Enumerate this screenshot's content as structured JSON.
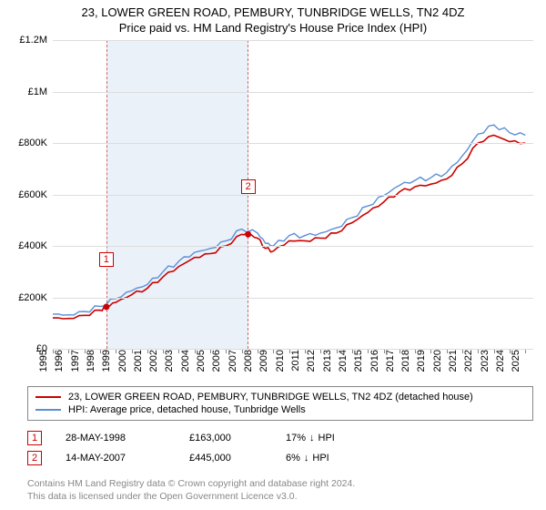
{
  "title_main": "23, LOWER GREEN ROAD, PEMBURY, TUNBRIDGE WELLS, TN2 4DZ",
  "title_sub": "Price paid vs. HM Land Registry's House Price Index (HPI)",
  "chart": {
    "type": "line",
    "background_color": "#ffffff",
    "grid_color": "#dddddd",
    "axis_color": "#888888",
    "label_fontsize": 11,
    "ylim": [
      0,
      1200000
    ],
    "yticks": [
      {
        "v": 0,
        "label": "£0"
      },
      {
        "v": 200000,
        "label": "£200K"
      },
      {
        "v": 400000,
        "label": "£400K"
      },
      {
        "v": 600000,
        "label": "£600K"
      },
      {
        "v": 800000,
        "label": "£800K"
      },
      {
        "v": 1000000,
        "label": "£1M"
      },
      {
        "v": 1200000,
        "label": "£1.2M"
      }
    ],
    "xlim": [
      1995,
      2025.5
    ],
    "xticks": [
      "1995",
      "1996",
      "1997",
      "1998",
      "1999",
      "2000",
      "2001",
      "2002",
      "2003",
      "2004",
      "2005",
      "2006",
      "2007",
      "2008",
      "2009",
      "2010",
      "2011",
      "2012",
      "2013",
      "2014",
      "2015",
      "2016",
      "2017",
      "2018",
      "2019",
      "2020",
      "2021",
      "2022",
      "2023",
      "2024",
      "2025"
    ],
    "shade": {
      "from_x": 1998.4,
      "to_x": 2007.4,
      "fill": "#eaf1f9",
      "border": "#cc6666"
    },
    "series": [
      {
        "name": "price_paid",
        "color": "#cc0000",
        "width": 1.6,
        "points": [
          [
            1995.0,
            120000
          ],
          [
            1996.0,
            118000
          ],
          [
            1997.0,
            130000
          ],
          [
            1998.0,
            150000
          ],
          [
            1998.4,
            163000
          ],
          [
            1999.0,
            180000
          ],
          [
            2000.0,
            210000
          ],
          [
            2001.0,
            235000
          ],
          [
            2002.0,
            280000
          ],
          [
            2003.0,
            320000
          ],
          [
            2004.0,
            355000
          ],
          [
            2005.0,
            370000
          ],
          [
            2006.0,
            400000
          ],
          [
            2007.0,
            445000
          ],
          [
            2007.4,
            445000
          ],
          [
            2008.0,
            430000
          ],
          [
            2008.5,
            390000
          ],
          [
            2009.0,
            380000
          ],
          [
            2010.0,
            420000
          ],
          [
            2011.0,
            420000
          ],
          [
            2012.0,
            430000
          ],
          [
            2013.0,
            450000
          ],
          [
            2014.0,
            490000
          ],
          [
            2015.0,
            530000
          ],
          [
            2016.0,
            570000
          ],
          [
            2017.0,
            610000
          ],
          [
            2018.0,
            630000
          ],
          [
            2019.0,
            640000
          ],
          [
            2020.0,
            660000
          ],
          [
            2021.0,
            720000
          ],
          [
            2022.0,
            800000
          ],
          [
            2023.0,
            830000
          ],
          [
            2024.0,
            805000
          ],
          [
            2025.0,
            800000
          ]
        ]
      },
      {
        "name": "hpi",
        "color": "#5a8fd6",
        "width": 1.4,
        "points": [
          [
            1995.0,
            135000
          ],
          [
            1996.0,
            132000
          ],
          [
            1997.0,
            145000
          ],
          [
            1998.0,
            165000
          ],
          [
            1999.0,
            195000
          ],
          [
            2000.0,
            225000
          ],
          [
            2001.0,
            250000
          ],
          [
            2002.0,
            300000
          ],
          [
            2003.0,
            340000
          ],
          [
            2004.0,
            375000
          ],
          [
            2005.0,
            390000
          ],
          [
            2006.0,
            420000
          ],
          [
            2007.0,
            465000
          ],
          [
            2008.0,
            450000
          ],
          [
            2008.5,
            410000
          ],
          [
            2009.0,
            400000
          ],
          [
            2010.0,
            440000
          ],
          [
            2011.0,
            440000
          ],
          [
            2012.0,
            450000
          ],
          [
            2013.0,
            470000
          ],
          [
            2014.0,
            510000
          ],
          [
            2015.0,
            555000
          ],
          [
            2016.0,
            595000
          ],
          [
            2017.0,
            635000
          ],
          [
            2018.0,
            655000
          ],
          [
            2019.0,
            665000
          ],
          [
            2020.0,
            685000
          ],
          [
            2021.0,
            750000
          ],
          [
            2022.0,
            835000
          ],
          [
            2023.0,
            870000
          ],
          [
            2024.0,
            840000
          ],
          [
            2025.0,
            830000
          ]
        ]
      }
    ],
    "sale_markers": [
      {
        "n": "1",
        "x": 1998.4,
        "y": 163000,
        "box_y_offset": -60
      },
      {
        "n": "2",
        "x": 2007.4,
        "y": 445000,
        "box_y_offset": -60
      }
    ]
  },
  "legend": [
    {
      "color": "#cc0000",
      "label": "23, LOWER GREEN ROAD, PEMBURY, TUNBRIDGE WELLS, TN2 4DZ (detached house)"
    },
    {
      "color": "#5a8fd6",
      "label": "HPI: Average price, detached house, Tunbridge Wells"
    }
  ],
  "sales": [
    {
      "n": "1",
      "date": "28-MAY-1998",
      "price": "£163,000",
      "delta": "17%",
      "arrow": "↓",
      "vs": "HPI"
    },
    {
      "n": "2",
      "date": "14-MAY-2007",
      "price": "£445,000",
      "delta": "6%",
      "arrow": "↓",
      "vs": "HPI"
    }
  ],
  "footer": [
    "Contains HM Land Registry data © Crown copyright and database right 2024.",
    "This data is licensed under the Open Government Licence v3.0."
  ]
}
